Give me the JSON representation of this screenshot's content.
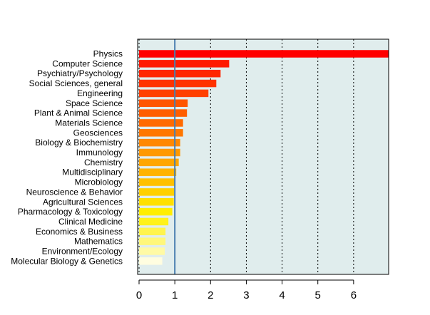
{
  "chart_data": {
    "type": "bar",
    "orientation": "horizontal",
    "categories": [
      "Physics",
      "Computer Science",
      "Psychiatry/Psychology",
      "Social Sciences, general",
      "Engineering",
      "Space Science",
      "Plant & Animal Science",
      "Materials Science",
      "Geosciences",
      "Biology & Biochemistry",
      "Immunology",
      "Chemistry",
      "Multidisciplinary",
      "Microbiology",
      "Neuroscience & Behavior",
      "Agricultural Sciences",
      "Pharmacology & Toxicology",
      "Clinical Medicine",
      "Economics & Business",
      "Mathematics",
      "Environment/Ecology",
      "Molecular Biology & Genetics"
    ],
    "values": [
      6.98,
      2.52,
      2.28,
      2.16,
      1.94,
      1.36,
      1.34,
      1.23,
      1.23,
      1.15,
      1.15,
      1.11,
      1.04,
      1.0,
      0.98,
      0.97,
      0.93,
      0.82,
      0.74,
      0.74,
      0.72,
      0.65
    ],
    "bar_colors": [
      "#ff0000",
      "#ff1a00",
      "#ff2600",
      "#ff3300",
      "#ff4000",
      "#ff5500",
      "#ff5e00",
      "#ff6a00",
      "#ff7700",
      "#ff8800",
      "#ff9900",
      "#ffa600",
      "#ffb300",
      "#ffc000",
      "#ffd000",
      "#ffe000",
      "#ffee00",
      "#fff21a",
      "#fff44d",
      "#fff77a",
      "#fffaa5",
      "#fffde0"
    ],
    "xticks": [
      0,
      1,
      2,
      3,
      4,
      5,
      6
    ],
    "xlim": [
      -0.04,
      6.98
    ],
    "reference_line": 1,
    "grid": "vertical-dotted",
    "colors": {
      "panel_bg": "#e0eded",
      "reference_line": "#4a7fb0",
      "grid": "#000000"
    },
    "title": "",
    "xlabel": "",
    "ylabel": ""
  }
}
